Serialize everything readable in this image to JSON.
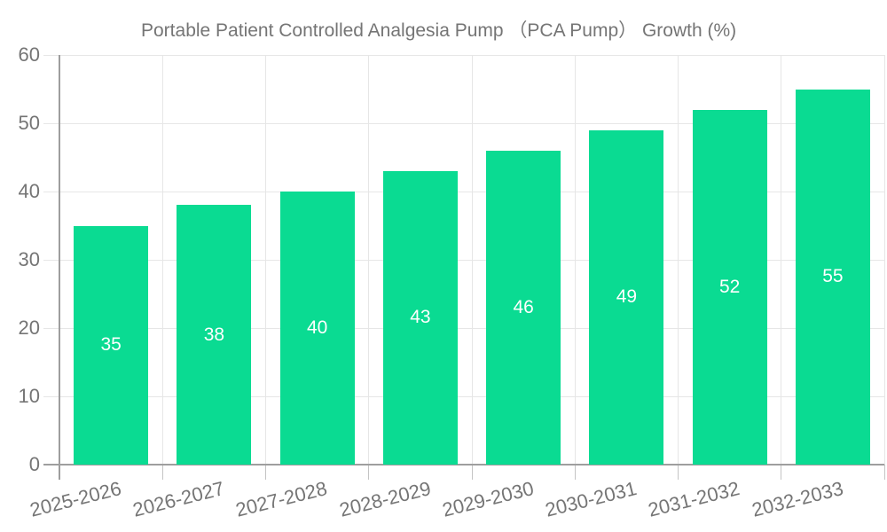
{
  "legend": {
    "label": "Portable Patient Controlled Analgesia Pump （PCA Pump） Growth (%)",
    "swatch_color": "#0ADB92"
  },
  "chart_data": {
    "type": "bar",
    "title": "Portable Patient Controlled Analgesia Pump （PCA Pump） Growth (%)",
    "categories": [
      "2025-2026",
      "2026-2027",
      "2027-2028",
      "2028-2029",
      "2029-2030",
      "2030-2031",
      "2031-2032",
      "2032-2033"
    ],
    "values": [
      35,
      38,
      40,
      43,
      46,
      49,
      52,
      55
    ],
    "xlabel": "",
    "ylabel": "",
    "ylim": [
      0,
      60
    ],
    "yticks": [
      0,
      10,
      20,
      30,
      40,
      50,
      60
    ],
    "grid": true,
    "legend_position": "top-left",
    "value_label_position": "inside-center",
    "colors": {
      "bar": "#0ADB92",
      "value_label": "#FFFFFF",
      "axis_text": "#757575",
      "gridline": "#E6E6E6",
      "axis_line": "#9E9E9E",
      "background": "#FFFFFF"
    }
  }
}
